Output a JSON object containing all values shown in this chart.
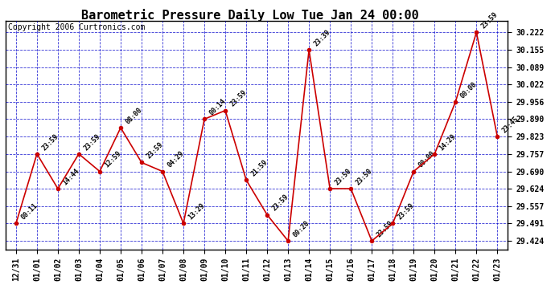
{
  "title": "Barometric Pressure Daily Low Tue Jan 24 00:00",
  "copyright": "Copyright 2006 Curtronics.com",
  "background_color": "#ffffff",
  "plot_background": "#ffffff",
  "line_color": "#cc0000",
  "marker_color": "#cc0000",
  "grid_color": "#0000cc",
  "x_labels": [
    "12/31",
    "01/01",
    "01/02",
    "01/03",
    "01/04",
    "01/05",
    "01/06",
    "01/07",
    "01/08",
    "01/09",
    "01/10",
    "01/11",
    "01/12",
    "01/13",
    "01/14",
    "01/15",
    "01/16",
    "01/17",
    "01/18",
    "01/19",
    "01/20",
    "01/21",
    "01/22",
    "01/23"
  ],
  "x_values": [
    0,
    1,
    2,
    3,
    4,
    5,
    6,
    7,
    8,
    9,
    10,
    11,
    12,
    13,
    14,
    15,
    16,
    17,
    18,
    19,
    20,
    21,
    22,
    23
  ],
  "y_values": [
    29.491,
    29.757,
    29.624,
    29.757,
    29.69,
    29.857,
    29.724,
    29.69,
    29.491,
    29.89,
    29.923,
    29.657,
    29.524,
    29.424,
    30.155,
    29.624,
    29.624,
    29.424,
    29.491,
    29.69,
    29.757,
    29.956,
    30.222,
    29.823
  ],
  "point_labels": [
    "00:11",
    "23:59",
    "14:44",
    "23:59",
    "12:59",
    "08:00",
    "23:59",
    "04:29",
    "13:29",
    "00:14",
    "23:59",
    "21:59",
    "23:59",
    "00:20",
    "23:39",
    "23:50",
    "23:50",
    "23:59",
    "23:59",
    "00:00",
    "14:29",
    "00:00",
    "23:59",
    "23:45"
  ],
  "ylim_min": 29.39,
  "ylim_max": 30.265,
  "yticks": [
    29.424,
    29.491,
    29.557,
    29.624,
    29.69,
    29.757,
    29.823,
    29.89,
    29.956,
    30.022,
    30.089,
    30.155,
    30.222
  ],
  "title_fontsize": 11,
  "copyright_fontsize": 7,
  "tick_fontsize": 7,
  "label_fontsize": 6
}
